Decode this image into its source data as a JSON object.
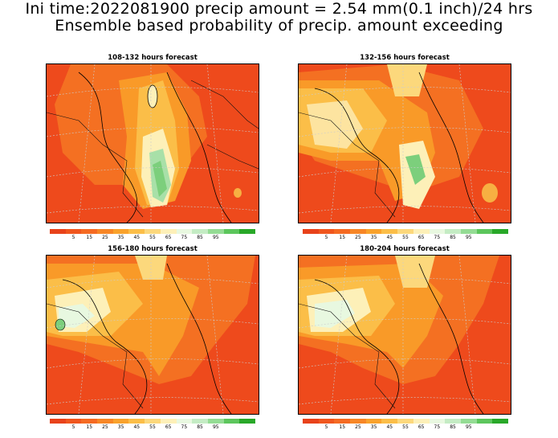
{
  "header": {
    "title_line1": "Ini time:2022081900 precip amount = 2.54 mm(0.1 inch)/24 hrs",
    "title_line2": "Ensemble based probability of precip. amount exceeding"
  },
  "legend": {
    "colors": [
      "#e8421a",
      "#f0561e",
      "#f56a22",
      "#f78626",
      "#f9a22c",
      "#fbbe48",
      "#fcd87c",
      "#fdf0b8",
      "#e8f8e0",
      "#c4ecc4",
      "#94dc94",
      "#5cc65c",
      "#28a828"
    ],
    "labels": [
      "5",
      "15",
      "25",
      "35",
      "45",
      "55",
      "65",
      "75",
      "85",
      "95"
    ]
  },
  "panels": [
    {
      "title": "108-132 hours forecast"
    },
    {
      "title": "132-156 hours forecast"
    },
    {
      "title": "156-180 hours forecast"
    },
    {
      "title": "180-204 hours forecast"
    }
  ]
}
